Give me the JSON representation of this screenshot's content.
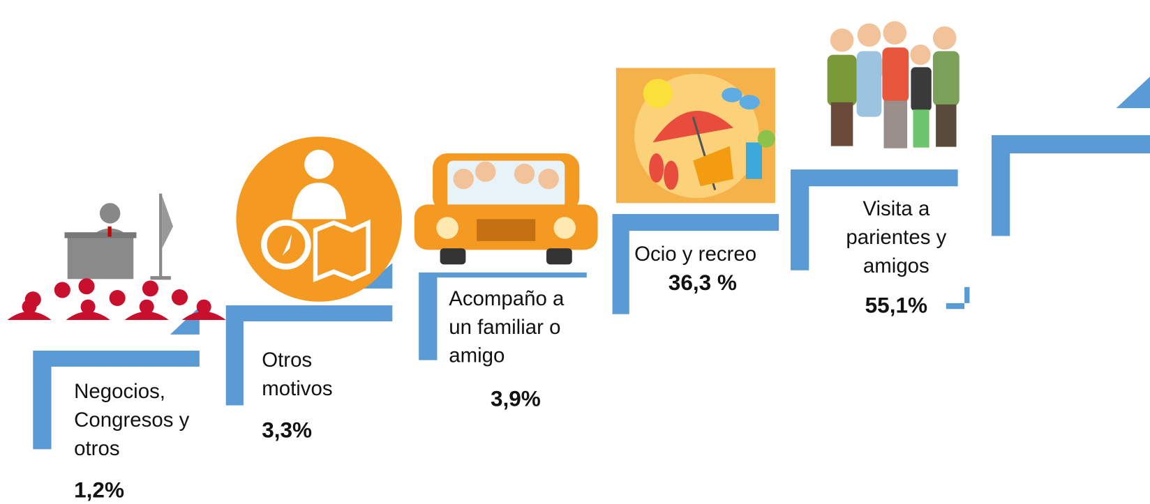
{
  "steps": [
    {
      "label_lines": [
        "Negocios,",
        "Congresos y",
        "otros"
      ],
      "value": "1,2%"
    },
    {
      "label_lines": [
        "Otros",
        "motivos"
      ],
      "value": "3,3%"
    },
    {
      "label_lines": [
        "Acompaño a",
        "un familiar o",
        "amigo"
      ],
      "value": "3,9%"
    },
    {
      "label_lines": [
        "Ocio y recreo"
      ],
      "value": "36,3 %"
    },
    {
      "label_lines": [
        "Visita a",
        "parientes y",
        "amigos"
      ],
      "value": "55,1%"
    }
  ]
}
